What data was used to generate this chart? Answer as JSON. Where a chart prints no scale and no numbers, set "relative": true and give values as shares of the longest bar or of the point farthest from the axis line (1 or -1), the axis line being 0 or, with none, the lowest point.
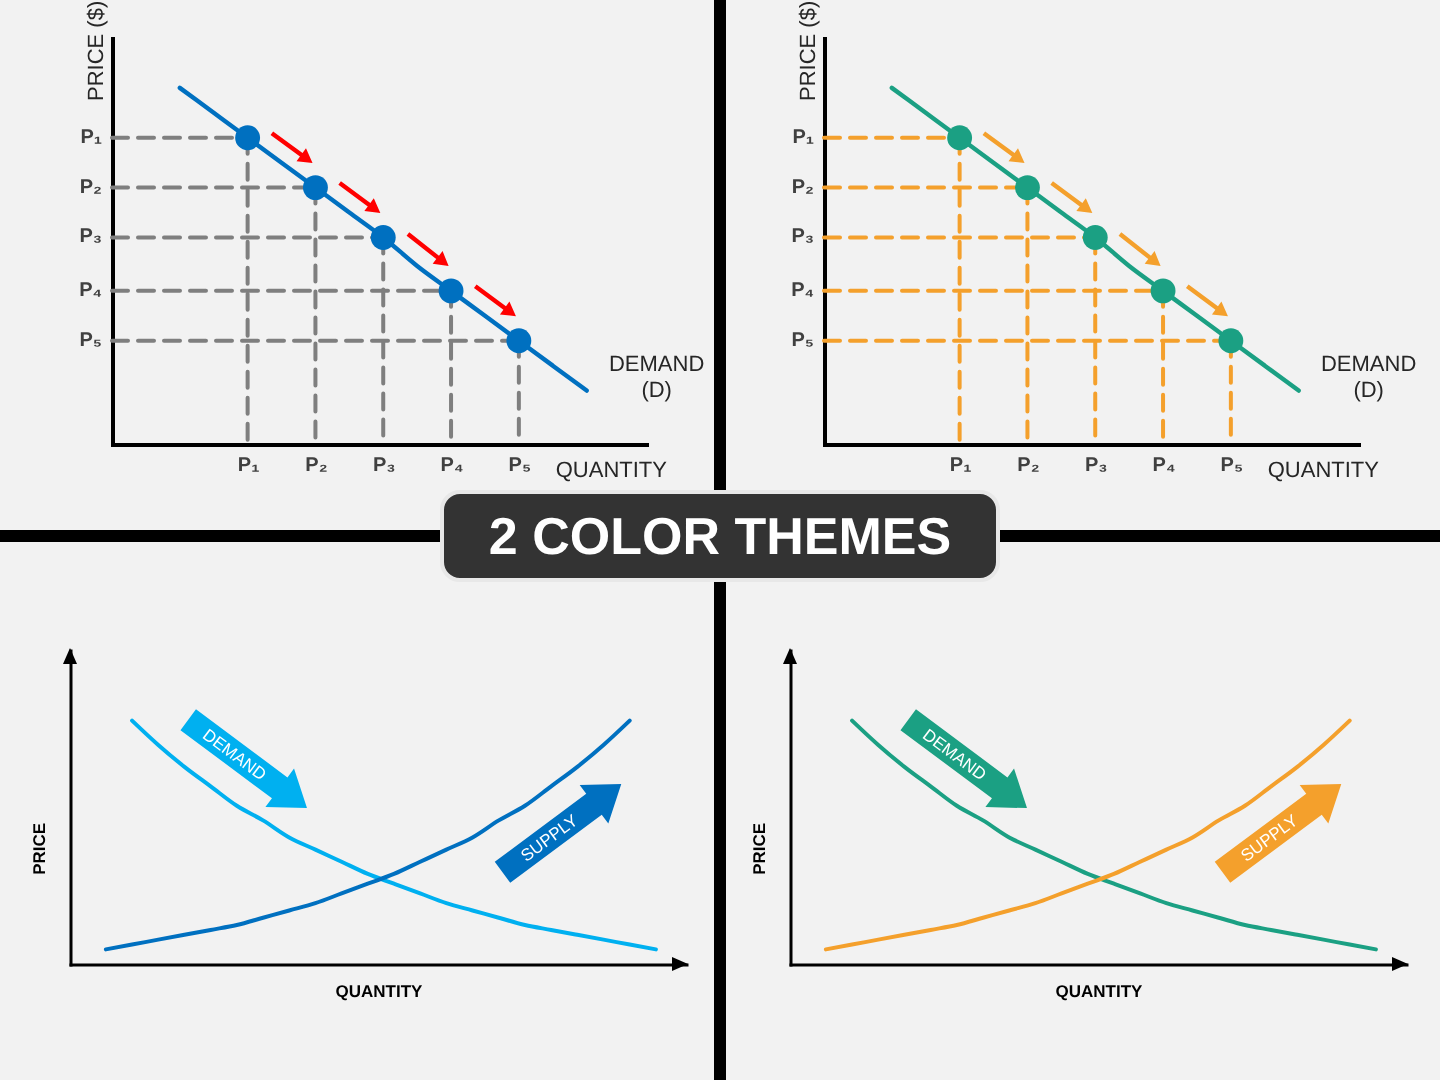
{
  "chart_data": [
    {
      "type": "line",
      "relative": true,
      "title": "2 COLOR THEMES",
      "xlabel": "QUANTITY",
      "ylabel": "PRICE ($)",
      "annotations": [
        "P₁",
        "P₂",
        "P₃",
        "P₄",
        "P₅"
      ],
      "categories": [
        null,
        null,
        null,
        null,
        "P₁",
        null,
        "P₂",
        null,
        "P₃",
        null,
        "P₄",
        null,
        "P₅",
        null,
        null,
        null
      ],
      "series": [
        {
          "name": "DEMAND (D)",
          "color": "#0070c0",
          "values": [
            null,
            null,
            1.0,
            0.93,
            0.86,
            0.79,
            0.72,
            0.65,
            0.58,
            0.5,
            0.43,
            0.36,
            0.29,
            0.22,
            0.15,
            null
          ]
        },
        {
          "line_style": "dashed",
          "color": "#7f7f7f",
          "values": [
            0.86,
            0.86,
            0.86,
            0.86,
            0.86,
            null,
            null,
            null,
            null,
            null,
            null,
            null,
            null,
            null,
            null,
            null
          ]
        },
        {
          "line_style": "dashed",
          "color": "#7f7f7f",
          "values": [
            0.72,
            0.72,
            0.72,
            0.72,
            0.72,
            0.72,
            0.72,
            null,
            null,
            null,
            null,
            null,
            null,
            null,
            null,
            null
          ]
        },
        {
          "line_style": "dashed",
          "color": "#7f7f7f",
          "values": [
            0.58,
            0.58,
            0.58,
            0.58,
            0.58,
            0.58,
            0.58,
            0.58,
            0.58,
            null,
            null,
            null,
            null,
            null,
            null,
            null
          ]
        },
        {
          "line_style": "dashed",
          "color": "#7f7f7f",
          "values": [
            0.43,
            0.43,
            0.43,
            0.43,
            0.43,
            0.43,
            0.43,
            0.43,
            0.43,
            0.43,
            0.43,
            null,
            null,
            null,
            null,
            null
          ]
        },
        {
          "line_style": "dashed",
          "color": "#7f7f7f",
          "values": [
            0.29,
            0.29,
            0.29,
            0.29,
            0.29,
            0.29,
            0.29,
            0.29,
            0.29,
            0.29,
            0.29,
            0.29,
            0.29,
            null,
            null,
            null
          ]
        },
        {
          "line_style": "dashed",
          "color": "#7f7f7f",
          "x": [
            "P₁",
            "P₁"
          ],
          "values": [
            0.86,
            0
          ]
        },
        {
          "line_style": "dashed",
          "color": "#7f7f7f",
          "x": [
            "P₂",
            "P₂"
          ],
          "values": [
            0.72,
            0
          ]
        },
        {
          "line_style": "dashed",
          "color": "#7f7f7f",
          "x": [
            "P₃",
            "P₃"
          ],
          "values": [
            0.58,
            0
          ]
        },
        {
          "line_style": "dashed",
          "color": "#7f7f7f",
          "x": [
            "P₄",
            "P₄"
          ],
          "values": [
            0.43,
            0
          ]
        },
        {
          "line_style": "dashed",
          "color": "#7f7f7f",
          "x": [
            "P₅",
            "P₅"
          ],
          "values": [
            0.29,
            0
          ]
        },
        {
          "type": "scatter",
          "marker": "circle",
          "color": "#0070c0",
          "values": [
            null,
            null,
            null,
            null,
            0.86,
            null,
            0.72,
            null,
            0.58,
            null,
            0.43,
            null,
            0.29,
            null,
            null,
            null
          ]
        }
      ]
    },
    {
      "type": "line",
      "relative": true,
      "xlabel": "QUANTITY",
      "ylabel": "PRICE ($)",
      "annotations": [
        "P₁",
        "P₂",
        "P₃",
        "P₄",
        "P₅"
      ],
      "categories": [
        null,
        null,
        null,
        null,
        "P₁",
        null,
        "P₂",
        null,
        "P₃",
        null,
        "P₄",
        null,
        "P₅",
        null,
        null,
        null
      ],
      "series": [
        {
          "name": "DEMAND (D)",
          "color": "#1ba083",
          "values": [
            null,
            null,
            1.0,
            0.93,
            0.86,
            0.79,
            0.72,
            0.65,
            0.58,
            0.5,
            0.43,
            0.36,
            0.29,
            0.22,
            0.15,
            null
          ]
        },
        {
          "line_style": "dashed",
          "color": "#f4a02c",
          "values": [
            0.86,
            0.86,
            0.86,
            0.86,
            0.86,
            null,
            null,
            null,
            null,
            null,
            null,
            null,
            null,
            null,
            null,
            null
          ]
        },
        {
          "line_style": "dashed",
          "color": "#f4a02c",
          "values": [
            0.72,
            0.72,
            0.72,
            0.72,
            0.72,
            0.72,
            0.72,
            null,
            null,
            null,
            null,
            null,
            null,
            null,
            null,
            null
          ]
        },
        {
          "line_style": "dashed",
          "color": "#f4a02c",
          "values": [
            0.58,
            0.58,
            0.58,
            0.58,
            0.58,
            0.58,
            0.58,
            0.58,
            0.58,
            null,
            null,
            null,
            null,
            null,
            null,
            null
          ]
        },
        {
          "line_style": "dashed",
          "color": "#f4a02c",
          "values": [
            0.43,
            0.43,
            0.43,
            0.43,
            0.43,
            0.43,
            0.43,
            0.43,
            0.43,
            0.43,
            0.43,
            null,
            null,
            null,
            null,
            null
          ]
        },
        {
          "line_style": "dashed",
          "color": "#f4a02c",
          "values": [
            0.29,
            0.29,
            0.29,
            0.29,
            0.29,
            0.29,
            0.29,
            0.29,
            0.29,
            0.29,
            0.29,
            0.29,
            0.29,
            null,
            null,
            null
          ]
        },
        {
          "line_style": "dashed",
          "color": "#f4a02c",
          "x": [
            "P₁",
            "P₁"
          ],
          "values": [
            0.86,
            0
          ]
        },
        {
          "line_style": "dashed",
          "color": "#f4a02c",
          "x": [
            "P₂",
            "P₂"
          ],
          "values": [
            0.72,
            0
          ]
        },
        {
          "line_style": "dashed",
          "color": "#f4a02c",
          "x": [
            "P₃",
            "P₃"
          ],
          "values": [
            0.58,
            0
          ]
        },
        {
          "line_style": "dashed",
          "color": "#f4a02c",
          "x": [
            "P₄",
            "P₄"
          ],
          "values": [
            0.43,
            0
          ]
        },
        {
          "line_style": "dashed",
          "color": "#f4a02c",
          "x": [
            "P₅",
            "P₅"
          ],
          "values": [
            0.29,
            0
          ]
        },
        {
          "type": "scatter",
          "marker": "circle",
          "color": "#1ba083",
          "values": [
            null,
            null,
            null,
            null,
            0.86,
            null,
            0.72,
            null,
            0.58,
            null,
            0.43,
            null,
            0.29,
            null,
            null,
            null
          ]
        }
      ]
    },
    {
      "type": "line",
      "relative": true,
      "xlabel": "QUANTITY",
      "ylabel": "PRICE",
      "categories": [
        null,
        null,
        null,
        null,
        null,
        null,
        null,
        null,
        null,
        null,
        null,
        null,
        null,
        null,
        null,
        null,
        null,
        null,
        null,
        null,
        null,
        null
      ],
      "series": [
        {
          "name": "DEMAND",
          "color": "#00b0f0",
          "values": [
            null,
            1.0,
            0.9,
            0.81,
            0.73,
            0.65,
            0.59,
            0.52,
            0.47,
            0.42,
            0.37,
            0.33,
            0.29,
            0.25,
            0.22,
            0.19,
            0.16,
            0.14,
            0.12,
            0.1,
            0.08,
            0.06
          ]
        },
        {
          "name": "SUPPLY",
          "color": "#0070c0",
          "values": [
            0.06,
            0.08,
            0.1,
            0.12,
            0.14,
            0.16,
            0.19,
            0.22,
            0.25,
            0.29,
            0.33,
            0.37,
            0.42,
            0.47,
            0.52,
            0.59,
            0.65,
            0.73,
            0.81,
            0.9,
            1.0,
            null
          ]
        }
      ]
    },
    {
      "type": "line",
      "relative": true,
      "xlabel": "QUANTITY",
      "ylabel": "PRICE",
      "categories": [
        null,
        null,
        null,
        null,
        null,
        null,
        null,
        null,
        null,
        null,
        null,
        null,
        null,
        null,
        null,
        null,
        null,
        null,
        null,
        null,
        null,
        null
      ],
      "series": [
        {
          "name": "DEMAND",
          "color": "#1ba083",
          "values": [
            null,
            1.0,
            0.9,
            0.81,
            0.73,
            0.65,
            0.59,
            0.52,
            0.47,
            0.42,
            0.37,
            0.33,
            0.29,
            0.25,
            0.22,
            0.19,
            0.16,
            0.14,
            0.12,
            0.1,
            0.08,
            0.06
          ]
        },
        {
          "name": "SUPPLY",
          "color": "#f4a02c",
          "values": [
            0.06,
            0.08,
            0.1,
            0.12,
            0.14,
            0.16,
            0.19,
            0.22,
            0.25,
            0.29,
            0.33,
            0.37,
            0.42,
            0.47,
            0.52,
            0.59,
            0.65,
            0.73,
            0.81,
            0.9,
            1.0,
            null
          ]
        }
      ]
    }
  ]
}
